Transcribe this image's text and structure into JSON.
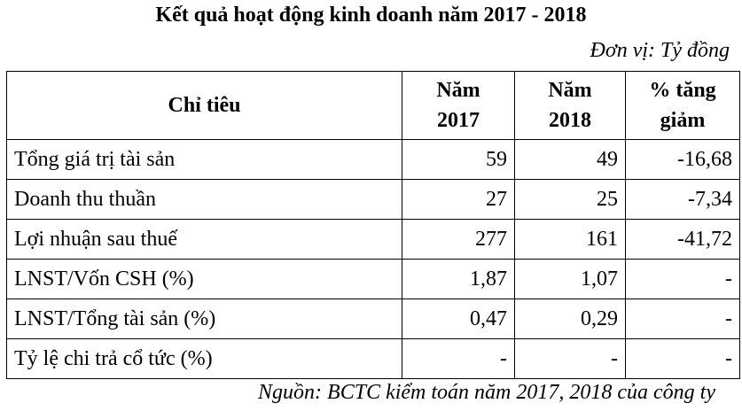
{
  "title": "Kết quả hoạt động kinh doanh năm 2017 - 2018",
  "unit": "Đơn vị: Tỷ đồng",
  "table": {
    "header": [
      "Chỉ tiêu",
      "Năm 2017",
      "Năm 2018",
      "% tăng giảm"
    ],
    "rows": [
      [
        "Tổng giá trị tài sản",
        "59",
        "49",
        "-16,68"
      ],
      [
        "Doanh thu thuần",
        "27",
        "25",
        "-7,34"
      ],
      [
        "Lợi nhuận sau thuế",
        "277",
        "161",
        "-41,72"
      ],
      [
        "LNST/Vốn CSH (%)",
        "1,87",
        "1,07",
        "-"
      ],
      [
        "LNST/Tổng tài sản (%)",
        "0,47",
        "0,29",
        "-"
      ],
      [
        "Tỷ lệ chi trả cổ tức (%)",
        "-",
        "-",
        "-"
      ]
    ]
  },
  "source": "Nguồn: BCTC kiểm toán  năm 2017, 2018 của công ty"
}
